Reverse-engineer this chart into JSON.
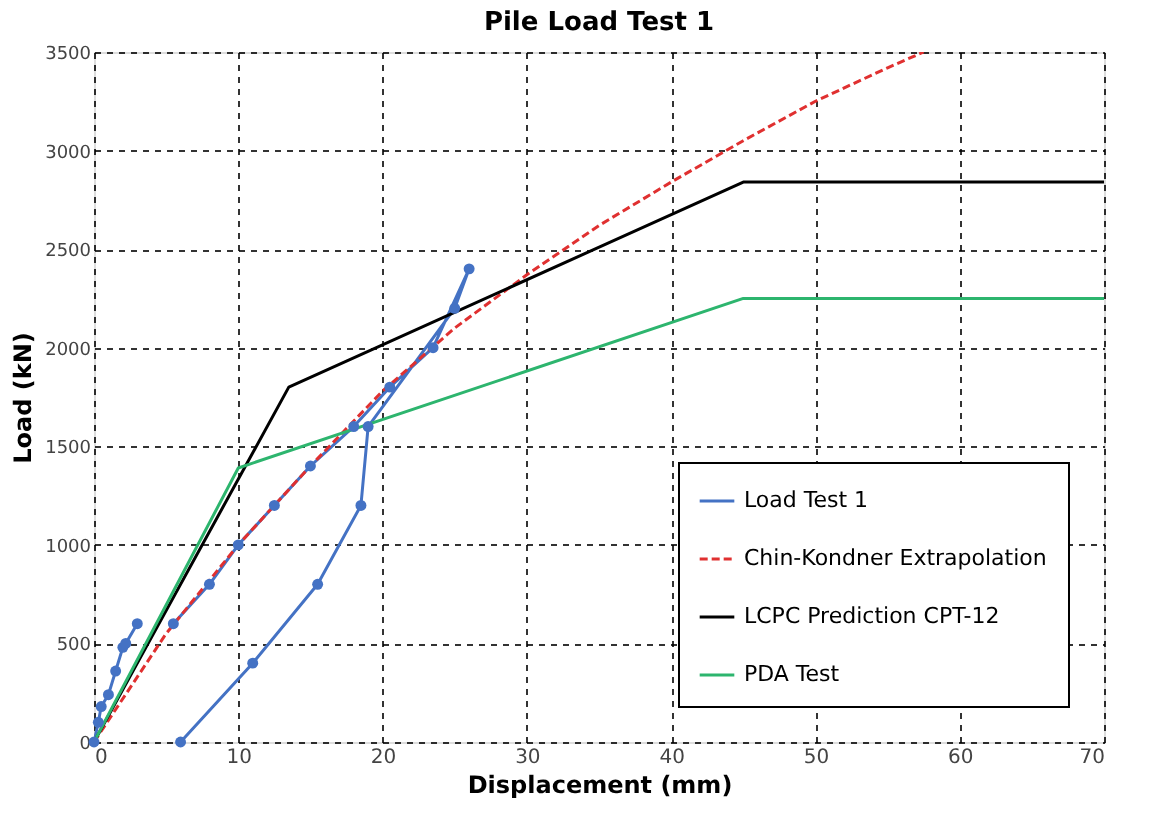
{
  "chart_data": {
    "type": "line",
    "title": "Pile Load Test 1",
    "xlabel": "Displacement (mm)",
    "ylabel": "Load (kN)",
    "xlim": [
      0,
      70
    ],
    "xticks": [
      0,
      10,
      20,
      30,
      40,
      50,
      60,
      70
    ],
    "ylim": [
      0,
      3500
    ],
    "yticks": [
      0,
      500,
      1000,
      1500,
      2000,
      2500,
      3000,
      3500
    ],
    "grid": true,
    "legend": "bottom right",
    "series": [
      {
        "name": "Load Test 1",
        "color": "#4472c4",
        "marker": "circle",
        "line_style": "solid",
        "x": [
          0,
          0.3,
          0.5,
          1,
          1.5,
          2,
          2.2,
          3,
          4,
          5.5,
          8,
          10,
          12.5,
          15,
          18,
          20.5,
          23.5,
          26,
          25,
          19,
          18.5,
          15.5,
          11,
          6
        ],
        "values": [
          0,
          100,
          180,
          240,
          360,
          480,
          500,
          600,
          null,
          600,
          800,
          1000,
          1200,
          1400,
          1600,
          1800,
          2000,
          2400,
          2200,
          1600,
          1200,
          800,
          400,
          0
        ]
      },
      {
        "name": "Chin-Kondner Extrapolation",
        "color": "#e03030",
        "marker": "none",
        "line_style": "dashed",
        "x": [
          0,
          5,
          10,
          15,
          20,
          25,
          30,
          35,
          40,
          45,
          50,
          55,
          57.5
        ],
        "values": [
          0,
          550,
          1000,
          1400,
          1780,
          2100,
          2370,
          2620,
          2840,
          3050,
          3250,
          3420,
          3500
        ]
      },
      {
        "name": "LCPC Prediction CPT-12",
        "color": "#000000",
        "marker": "none",
        "line_style": "solid",
        "x": [
          0,
          13.5,
          45,
          70
        ],
        "values": [
          0,
          1800,
          2840,
          2840
        ]
      },
      {
        "name": "PDA Test",
        "color": "#2db56e",
        "marker": "none",
        "line_style": "solid",
        "x": [
          0,
          10,
          45,
          70
        ],
        "values": [
          0,
          1390,
          2250,
          2250
        ]
      }
    ]
  }
}
